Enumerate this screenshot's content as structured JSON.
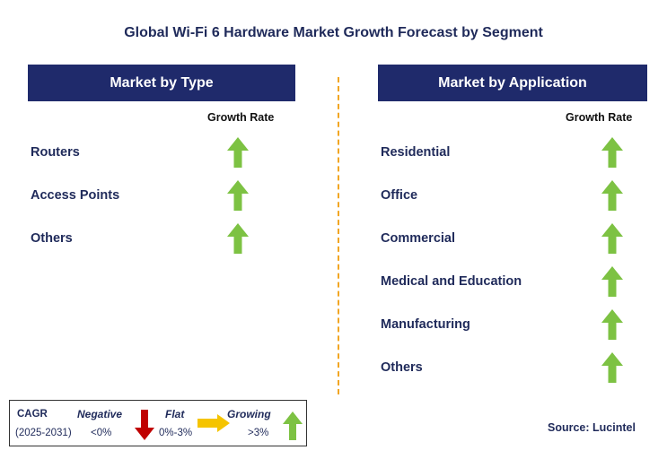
{
  "title": "Global Wi-Fi 6 Hardware Market Growth Forecast by Segment",
  "left_panel": {
    "header": "Market by Type",
    "growth_label": "Growth Rate",
    "items": [
      {
        "label": "Routers",
        "trend": "growing"
      },
      {
        "label": "Access Points",
        "trend": "growing"
      },
      {
        "label": "Others",
        "trend": "growing"
      }
    ]
  },
  "right_panel": {
    "header": "Market by Application",
    "growth_label": "Growth Rate",
    "items": [
      {
        "label": "Residential",
        "trend": "growing"
      },
      {
        "label": "Office",
        "trend": "growing"
      },
      {
        "label": "Commercial",
        "trend": "growing"
      },
      {
        "label": "Medical and Education",
        "trend": "growing"
      },
      {
        "label": "Manufacturing",
        "trend": "growing"
      },
      {
        "label": "Others",
        "trend": "growing"
      }
    ]
  },
  "legend": {
    "cagr_label": "CAGR",
    "period": "(2025-2031)",
    "negative_label": "Negative",
    "negative_range": "<0%",
    "flat_label": "Flat",
    "flat_range": "0%-3%",
    "growing_label": "Growing",
    "growing_range": ">3%"
  },
  "source": "Source: Lucintel",
  "colors": {
    "header_bg": "#1f2a6b",
    "text": "#1f2a5a",
    "divider": "#f2a623",
    "growing": "#7dc243",
    "flat": "#f5c400",
    "negative": "#c00000"
  },
  "icons": {
    "growing": "arrow-up-icon",
    "flat": "arrow-right-icon",
    "negative": "arrow-down-icon"
  }
}
